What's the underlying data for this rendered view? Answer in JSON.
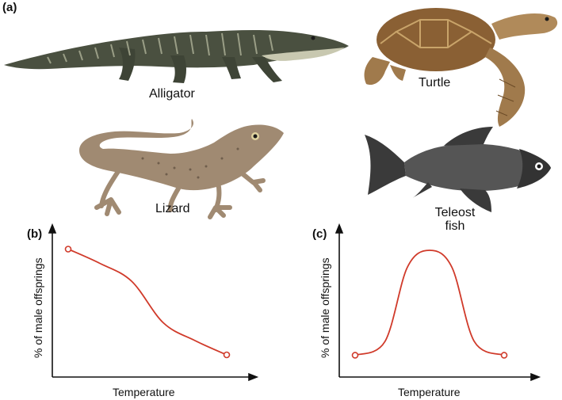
{
  "panels": {
    "a": "(a)",
    "b": "(b)",
    "c": "(c)"
  },
  "animals": {
    "alligator": "Alligator",
    "turtle": "Turtle",
    "lizard": "Lizard",
    "fish_line1": "Teleost",
    "fish_line2": "fish"
  },
  "colors": {
    "alligator": "#4a5040",
    "turtle_shell": "#8a6034",
    "turtle_skin": "#b08a5a",
    "lizard": "#a08a72",
    "fish": "#555555",
    "curve": "#d03a2a"
  },
  "chart_data": [
    {
      "type": "line",
      "panel": "(b)",
      "xlabel": "Temperature",
      "ylabel": "% of male offsprings",
      "ylim": [
        0,
        100
      ],
      "x": [
        0,
        0.2,
        0.4,
        0.6,
        0.8,
        1.0
      ],
      "values": [
        97,
        85,
        70,
        35,
        20,
        8
      ],
      "grid": false
    },
    {
      "type": "line",
      "panel": "(c)",
      "xlabel": "Temperature",
      "ylabel": "% of male offsprings",
      "ylim": [
        0,
        100
      ],
      "x": [
        0,
        0.2,
        0.35,
        0.5,
        0.65,
        0.8,
        1.0
      ],
      "values": [
        8,
        20,
        85,
        100,
        85,
        20,
        8
      ],
      "grid": false
    }
  ]
}
